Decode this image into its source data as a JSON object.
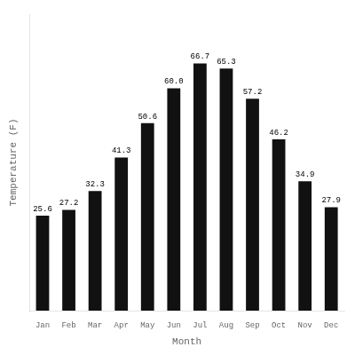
{
  "chart_data": {
    "type": "bar",
    "categories": [
      "Jan",
      "Feb",
      "Mar",
      "Apr",
      "May",
      "Jun",
      "Jul",
      "Aug",
      "Sep",
      "Oct",
      "Nov",
      "Dec"
    ],
    "values": [
      25.6,
      27.2,
      32.3,
      41.3,
      50.6,
      60.0,
      66.7,
      65.3,
      57.2,
      46.2,
      34.9,
      27.9
    ],
    "value_labels": [
      "25.6",
      "27.2",
      "32.3",
      "41.3",
      "50.6",
      "60.0",
      "66.7",
      "65.3",
      "57.2",
      "46.2",
      "34.9",
      "27.9"
    ],
    "color": "#111111",
    "x_label": "Month",
    "y_label": "Temperature (F)",
    "ylim": [
      0,
      80
    ],
    "grid": false,
    "data_labels": true,
    "tick_labels": "x"
  }
}
